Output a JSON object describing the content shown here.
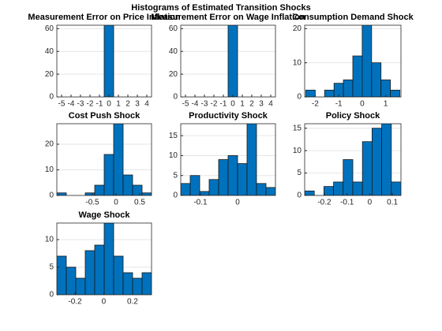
{
  "title": "Histograms of Estimated Transition Shocks",
  "chart_data": [
    {
      "type": "histogram",
      "title": "Measurement Error on Price Inflation",
      "bins": [
        -0.5,
        0.5
      ],
      "values": [
        63
      ],
      "color": "#0072bd",
      "xlim": [
        -5.5,
        4.5
      ],
      "ylim": [
        0,
        63
      ],
      "xticks": [
        -5,
        -4,
        -3,
        -2,
        -1,
        0,
        1,
        2,
        3,
        4
      ],
      "yticks": [
        0,
        20,
        40,
        60
      ],
      "grid": "y"
    },
    {
      "type": "histogram",
      "title": "Measurement Error on Wage Inflation",
      "bins": [
        -0.5,
        0.5
      ],
      "values": [
        63
      ],
      "color": "#0072bd",
      "xlim": [
        -5.5,
        4.5
      ],
      "ylim": [
        0,
        63
      ],
      "xticks": [
        -5,
        -4,
        -3,
        -2,
        -1,
        0,
        1,
        2,
        3,
        4
      ],
      "yticks": [
        0,
        20,
        40,
        60
      ],
      "grid": "y"
    },
    {
      "type": "histogram",
      "title": "Consumption Demand Shock",
      "bins": [
        -2.4,
        -2.0,
        -1.6,
        -1.2,
        -0.8,
        -0.4,
        0,
        0.4,
        0.8,
        1.2,
        1.6
      ],
      "values": [
        2,
        0,
        2,
        4,
        5,
        12,
        21,
        10,
        5,
        2
      ],
      "color": "#0072bd",
      "xlim": [
        -2.45,
        1.65
      ],
      "ylim": [
        0,
        21
      ],
      "xticks": [
        -2,
        -1,
        0,
        1
      ],
      "yticks": [
        0,
        10,
        20
      ],
      "grid": "y"
    },
    {
      "type": "histogram",
      "title": "Cost Push Shock",
      "bins": [
        -1.25,
        -1.05,
        -0.85,
        -0.65,
        -0.45,
        -0.25,
        -0.05,
        0.15,
        0.35,
        0.55,
        0.75
      ],
      "values": [
        1,
        0,
        0,
        1,
        4,
        16,
        28,
        8,
        4,
        1
      ],
      "color": "#0072bd",
      "xlim": [
        -1.25,
        0.75
      ],
      "ylim": [
        0,
        28
      ],
      "xticks": [
        -0.5,
        0,
        0.5
      ],
      "yticks": [
        0,
        10,
        20
      ],
      "grid": "y"
    },
    {
      "type": "histogram",
      "title": "Productivity Shock",
      "bins": [
        -0.153,
        -0.1275,
        -0.102,
        -0.0765,
        -0.051,
        -0.0255,
        0,
        0.0255,
        0.051,
        0.0765,
        0.102
      ],
      "values": [
        3,
        5,
        1,
        4,
        9,
        10,
        8,
        18,
        3,
        2
      ],
      "color": "#0072bd",
      "xlim": [
        -0.153,
        0.102
      ],
      "ylim": [
        0,
        18
      ],
      "xticks": [
        -0.1,
        0
      ],
      "yticks": [
        0,
        5,
        10,
        15
      ],
      "grid": "y"
    },
    {
      "type": "histogram",
      "title": "Policy Shock",
      "bins": [
        -0.287,
        -0.2445,
        -0.202,
        -0.1595,
        -0.117,
        -0.0745,
        -0.032,
        0.0105,
        0.053,
        0.0955,
        0.138
      ],
      "values": [
        1,
        0,
        2,
        3,
        8,
        3,
        12,
        15,
        16,
        3
      ],
      "color": "#0072bd",
      "xlim": [
        -0.287,
        0.138
      ],
      "ylim": [
        0,
        16
      ],
      "xticks": [
        -0.2,
        -0.1,
        0,
        0.1
      ],
      "yticks": [
        0,
        5,
        10,
        15
      ],
      "grid": "y"
    },
    {
      "type": "histogram",
      "title": "Wage Shock",
      "bins": [
        -0.326,
        -0.2602,
        -0.1944,
        -0.1286,
        -0.0628,
        0.003,
        0.0688,
        0.1346,
        0.2004,
        0.2662,
        0.332
      ],
      "values": [
        7,
        5,
        3,
        8,
        9,
        13,
        7,
        4,
        3,
        4
      ],
      "color": "#0072bd",
      "xlim": [
        -0.326,
        0.332
      ],
      "ylim": [
        0,
        13
      ],
      "xticks": [
        -0.2,
        0,
        0.2
      ],
      "yticks": [
        0,
        5,
        10
      ],
      "grid": "y"
    }
  ]
}
